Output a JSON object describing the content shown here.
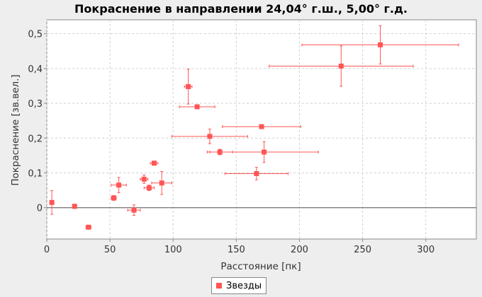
{
  "chart_data": {
    "type": "scatter",
    "title": "Покраснение в направлении 24,04° г.ш., 5,00° г.д.",
    "xlabel": "Расстояние [пк]",
    "ylabel": "Покраснение [зв.вел.]",
    "xlim": [
      0,
      340
    ],
    "ylim": [
      -0.09,
      0.54
    ],
    "xticks": [
      0,
      50,
      100,
      150,
      200,
      250,
      300
    ],
    "xtick_labels": [
      "0",
      "50",
      "100",
      "150",
      "200",
      "250",
      "300"
    ],
    "yticks": [
      0,
      0.1,
      0.2,
      0.3,
      0.4,
      0.5
    ],
    "ytick_labels": [
      "0",
      "0,1",
      "0,2",
      "0,3",
      "0,4",
      "0,5"
    ],
    "grid": true,
    "zero_line": true,
    "legend_position": "bottom-center",
    "series": [
      {
        "name": "Звезды",
        "color": "#ff5555",
        "points": [
          {
            "x": 4,
            "y": 0.015,
            "xerr": 0,
            "yerr": 0.034
          },
          {
            "x": 22,
            "y": 0.004,
            "xerr": 1,
            "yerr": 0.006
          },
          {
            "x": 33,
            "y": -0.056,
            "xerr": 2,
            "yerr": 0.003
          },
          {
            "x": 53,
            "y": 0.028,
            "xerr": 2,
            "yerr": 0.007
          },
          {
            "x": 57,
            "y": 0.065,
            "xerr": 6,
            "yerr": 0.022
          },
          {
            "x": 69,
            "y": -0.007,
            "xerr": 5,
            "yerr": 0.015
          },
          {
            "x": 77,
            "y": 0.082,
            "xerr": 3,
            "yerr": 0.012
          },
          {
            "x": 81,
            "y": 0.057,
            "xerr": 4,
            "yerr": 0.008
          },
          {
            "x": 85,
            "y": 0.128,
            "xerr": 3,
            "yerr": 0.006
          },
          {
            "x": 91,
            "y": 0.071,
            "xerr": 8,
            "yerr": 0.033
          },
          {
            "x": 112,
            "y": 0.348,
            "xerr": 3,
            "yerr": 0.05
          },
          {
            "x": 119,
            "y": 0.29,
            "xerr": 14,
            "yerr": 0.004
          },
          {
            "x": 129,
            "y": 0.205,
            "xerr": 30,
            "yerr": 0.021
          },
          {
            "x": 137,
            "y": 0.16,
            "xerr": 10,
            "yerr": 0.008
          },
          {
            "x": 166,
            "y": 0.098,
            "xerr": 25,
            "yerr": 0.018
          },
          {
            "x": 170,
            "y": 0.233,
            "xerr": 31,
            "yerr": 0.004
          },
          {
            "x": 172,
            "y": 0.16,
            "xerr": 43,
            "yerr": 0.03
          },
          {
            "x": 233,
            "y": 0.407,
            "xerr": 57,
            "yerr": 0.058
          },
          {
            "x": 264,
            "y": 0.468,
            "xerr": 62,
            "yerr": 0.055
          }
        ]
      }
    ]
  }
}
